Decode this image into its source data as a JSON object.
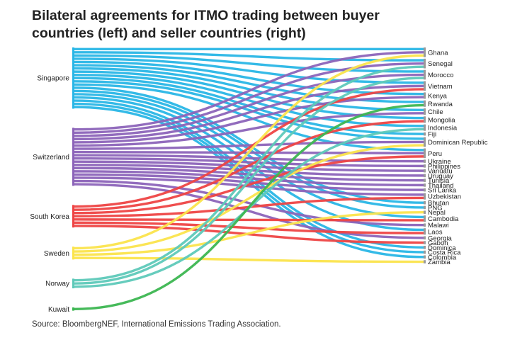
{
  "chart_data": {
    "type": "sankey",
    "title_lines": [
      "Bilateral agreements for ITMO trading between buyer",
      "countries (left) and seller countries (right)"
    ],
    "source": "Source: BloombergNEF, International Emissions Trading Association.",
    "buyers": [
      {
        "name": "Singapore",
        "color": "#29b6e6"
      },
      {
        "name": "Switzerland",
        "color": "#8c64b9"
      },
      {
        "name": "South Korea",
        "color": "#ee4444"
      },
      {
        "name": "Sweden",
        "color": "#fbe44c"
      },
      {
        "name": "Norway",
        "color": "#5ec9b9"
      },
      {
        "name": "Kuwait",
        "color": "#3cb651"
      }
    ],
    "sellers": [
      "Ghana",
      "Senegal",
      "Morocco",
      "Vietnam",
      "Kenya",
      "Rwanda",
      "Chile",
      "Mongolia",
      "Indonesia",
      "Fiji",
      "Dominican Republic",
      "Peru",
      "Ukraine",
      "Philippines",
      "Vanuatu",
      "Uruguay",
      "Tunisia",
      "Thailand",
      "Sri Lanka",
      "Uzbekistan",
      "Bhutan",
      "PNG",
      "Nepal",
      "Cambodia",
      "Malawi",
      "Laos",
      "Georgia",
      "Gabon",
      "Dominica",
      "Costa Rica",
      "Colombia",
      "Zambia"
    ],
    "links": [
      [
        "Singapore",
        "Ghana"
      ],
      [
        "Singapore",
        "Senegal"
      ],
      [
        "Singapore",
        "Morocco"
      ],
      [
        "Singapore",
        "Vietnam"
      ],
      [
        "Singapore",
        "Kenya"
      ],
      [
        "Singapore",
        "Rwanda"
      ],
      [
        "Singapore",
        "Chile"
      ],
      [
        "Singapore",
        "Mongolia"
      ],
      [
        "Singapore",
        "Indonesia"
      ],
      [
        "Singapore",
        "Fiji"
      ],
      [
        "Singapore",
        "Dominican Republic"
      ],
      [
        "Singapore",
        "Peru"
      ],
      [
        "Singapore",
        "Bhutan"
      ],
      [
        "Singapore",
        "PNG"
      ],
      [
        "Singapore",
        "Cambodia"
      ],
      [
        "Singapore",
        "Laos"
      ],
      [
        "Singapore",
        "Dominica"
      ],
      [
        "Singapore",
        "Costa Rica"
      ],
      [
        "Singapore",
        "Colombia"
      ],
      [
        "Switzerland",
        "Ghana"
      ],
      [
        "Switzerland",
        "Senegal"
      ],
      [
        "Switzerland",
        "Morocco"
      ],
      [
        "Switzerland",
        "Vietnam"
      ],
      [
        "Switzerland",
        "Kenya"
      ],
      [
        "Switzerland",
        "Chile"
      ],
      [
        "Switzerland",
        "Dominican Republic"
      ],
      [
        "Switzerland",
        "Peru"
      ],
      [
        "Switzerland",
        "Ukraine"
      ],
      [
        "Switzerland",
        "Philippines"
      ],
      [
        "Switzerland",
        "Vanuatu"
      ],
      [
        "Switzerland",
        "Uruguay"
      ],
      [
        "Switzerland",
        "Tunisia"
      ],
      [
        "Switzerland",
        "Thailand"
      ],
      [
        "Switzerland",
        "Sri Lanka"
      ],
      [
        "Switzerland",
        "Uzbekistan"
      ],
      [
        "Switzerland",
        "Malawi"
      ],
      [
        "Switzerland",
        "Georgia"
      ],
      [
        "South Korea",
        "Vietnam"
      ],
      [
        "South Korea",
        "Mongolia"
      ],
      [
        "South Korea",
        "Peru"
      ],
      [
        "South Korea",
        "Uzbekistan"
      ],
      [
        "South Korea",
        "Cambodia"
      ],
      [
        "South Korea",
        "Laos"
      ],
      [
        "South Korea",
        "Gabon"
      ],
      [
        "Sweden",
        "Ghana"
      ],
      [
        "Sweden",
        "Dominican Republic"
      ],
      [
        "Sweden",
        "Nepal"
      ],
      [
        "Sweden",
        "Zambia"
      ],
      [
        "Norway",
        "Senegal"
      ],
      [
        "Norway",
        "Morocco"
      ],
      [
        "Norway",
        "Indonesia"
      ],
      [
        "Kuwait",
        "Rwanda"
      ]
    ]
  }
}
